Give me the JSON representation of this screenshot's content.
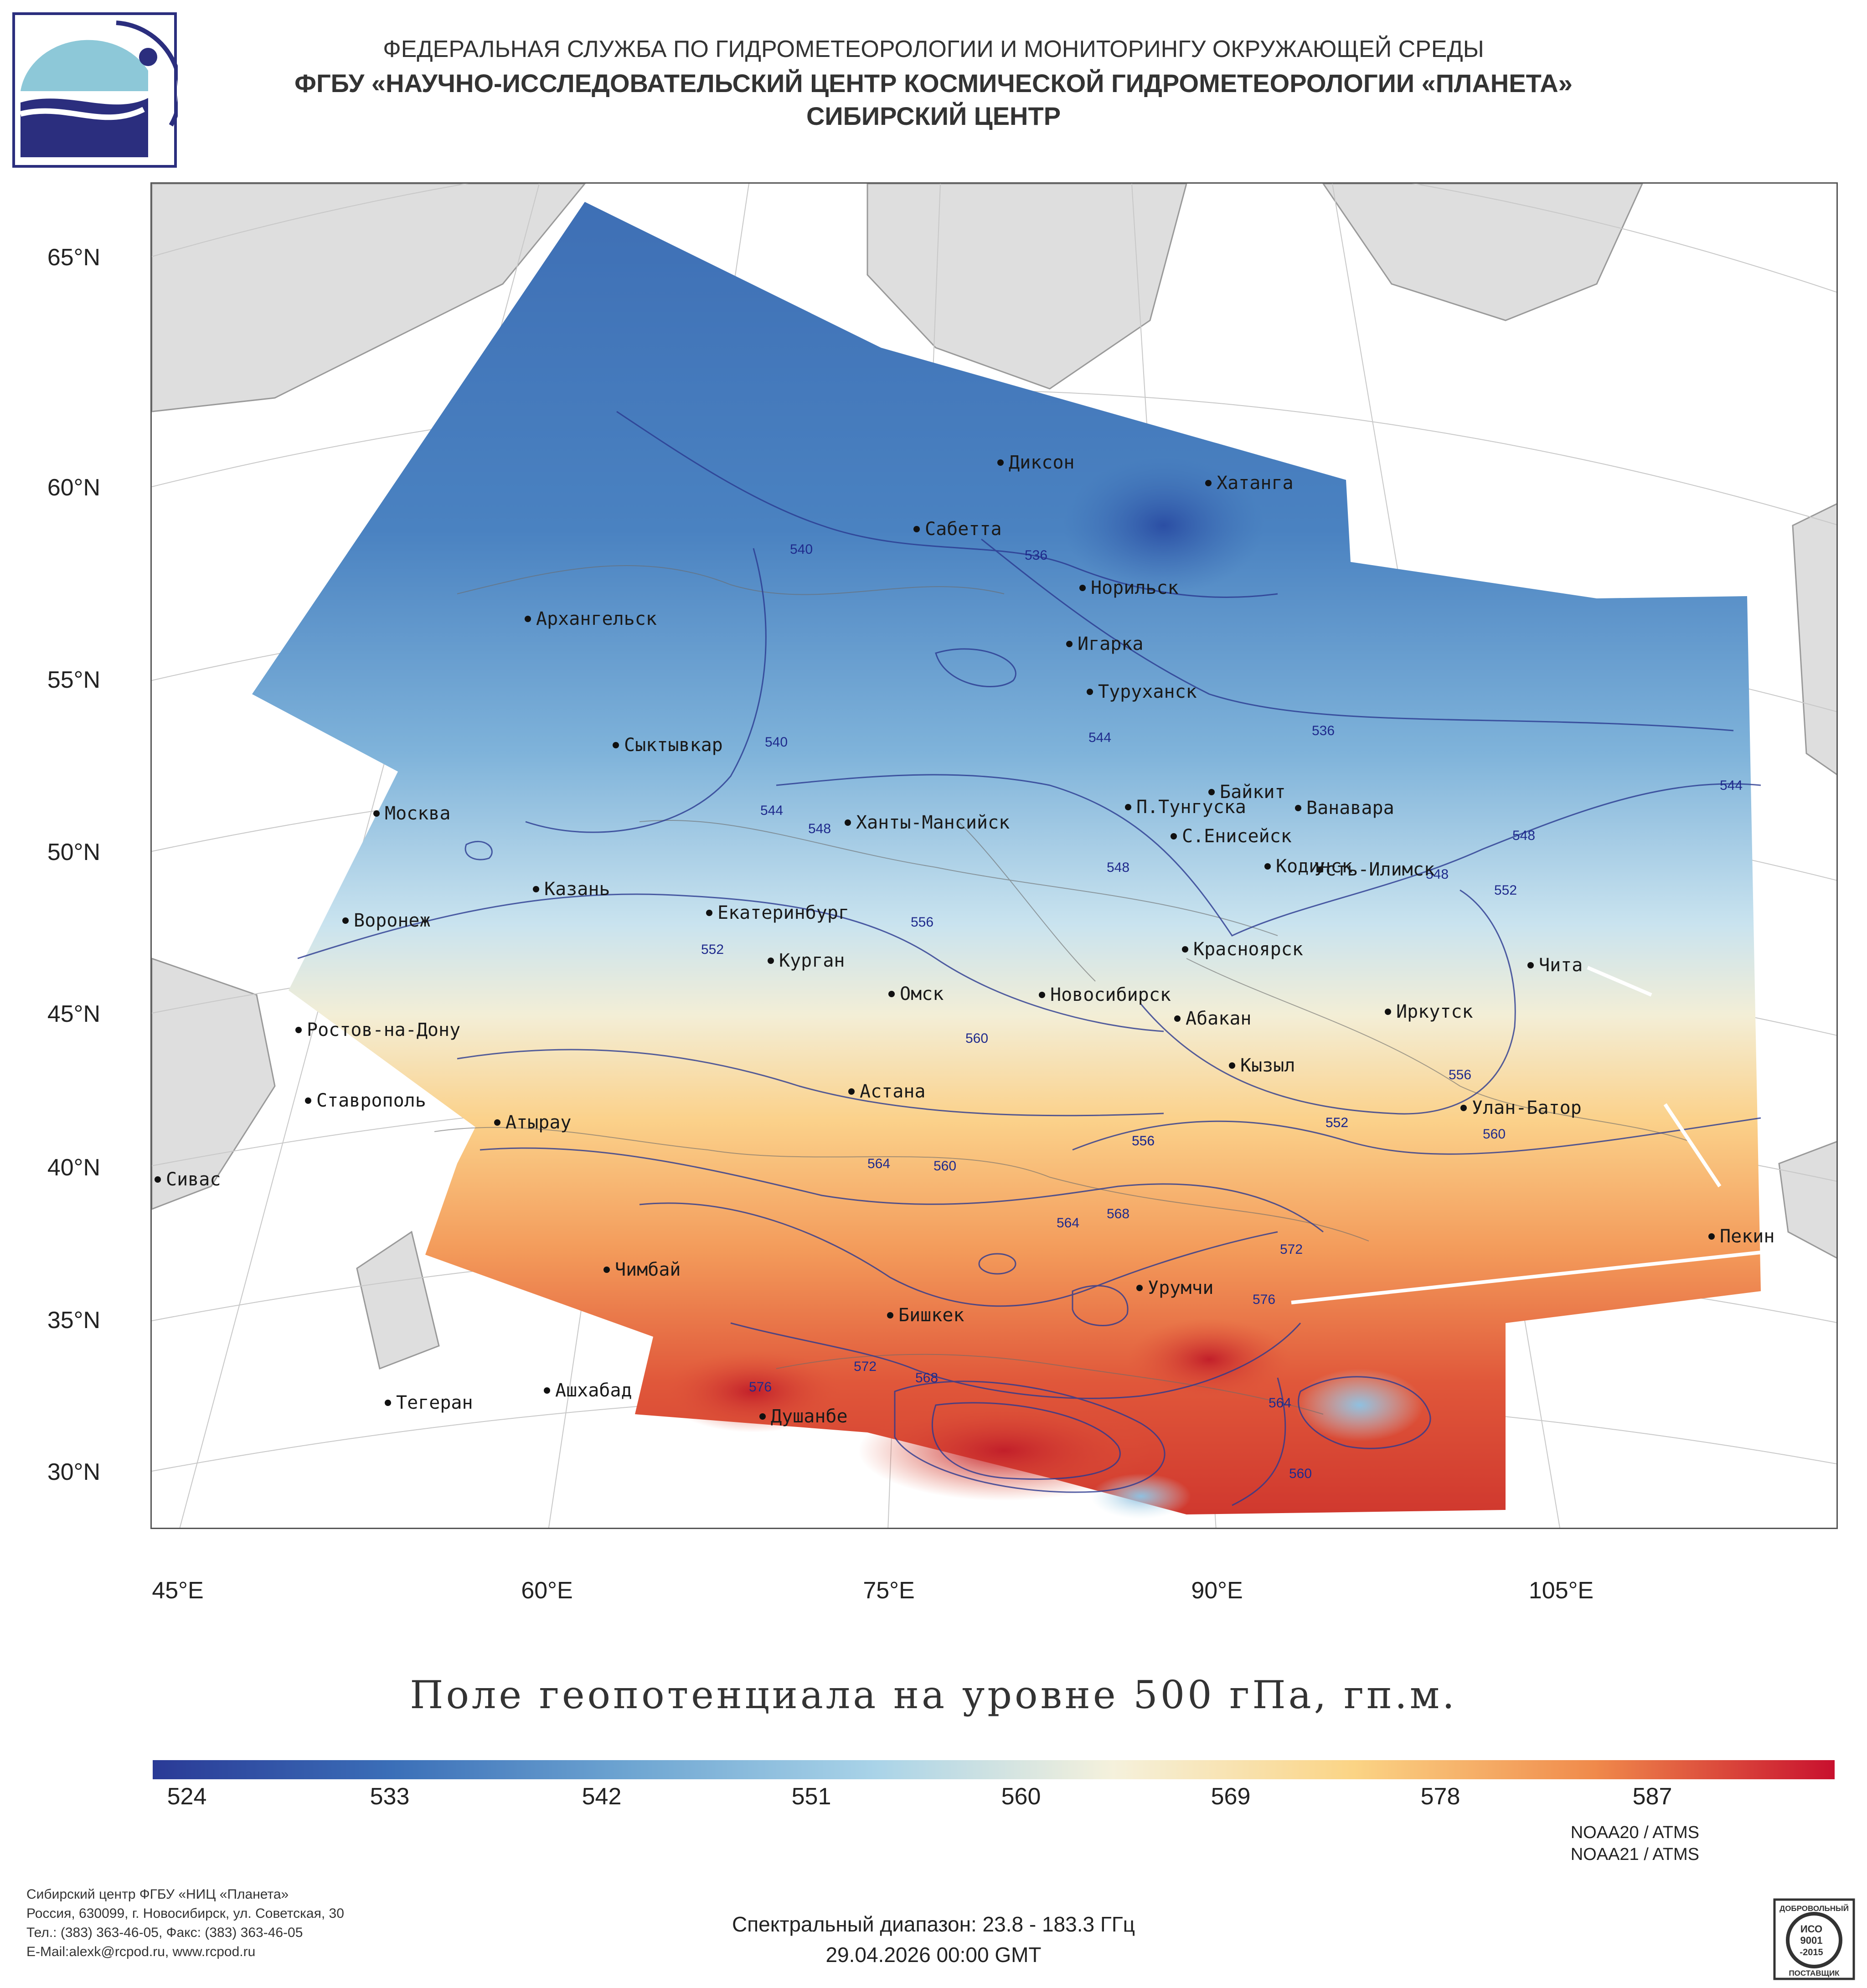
{
  "header": {
    "agency": "ФЕДЕРАЛЬНАЯ СЛУЖБА ПО ГИДРОМЕТЕОРОЛОГИИ И МОНИТОРИНГУ ОКРУЖАЮЩЕЙ СРЕДЫ",
    "institute": "ФГБУ «НАУЧНО-ИССЛЕДОВАТЕЛЬСКИЙ ЦЕНТР КОСМИЧЕСКОЙ ГИДРОМЕТЕОРОЛОГИИ «ПЛАНЕТА»",
    "center": "СИБИРСКИЙ ЦЕНТР"
  },
  "map": {
    "lat_labels": [
      "65°N",
      "60°N",
      "55°N",
      "50°N",
      "45°N",
      "40°N",
      "35°N",
      "30°N"
    ],
    "lon_labels": [
      "45°E",
      "60°E",
      "75°E",
      "90°E",
      "105°E"
    ],
    "cities": [
      "Диксон",
      "Хатанга",
      "Сабетта",
      "Норильск",
      "Архангельск",
      "Игарка",
      "Туруханск",
      "Сыктывкар",
      "Байкит",
      "Москва",
      "П.Тунгуска",
      "Ванавара",
      "Ханты-Мансийск",
      "С.Енисейск",
      "Казань",
      "Кодинск",
      "Усть-Илимск",
      "Воронеж",
      "Екатеринбург",
      "Красноярск",
      "Курган",
      "Чита",
      "Омск",
      "Новосибирск",
      "Иркутск",
      "Ростов-на-Дону",
      "Абакан",
      "Кызыл",
      "Ставрополь",
      "Астана",
      "Улан-Батор",
      "Атырау",
      "Сивас",
      "Пекин",
      "Чимбай",
      "Урумчи",
      "Бишкек",
      "Ашхабад",
      "Тегеран",
      "Душанбе"
    ],
    "contour_labels": [
      "540",
      "536",
      "536",
      "540",
      "544",
      "548",
      "544",
      "548",
      "544",
      "548",
      "548",
      "552",
      "552",
      "556",
      "552",
      "556",
      "560",
      "556",
      "552",
      "560",
      "556",
      "564",
      "560",
      "564",
      "568",
      "572",
      "576",
      "572",
      "576",
      "568",
      "564",
      "560"
    ]
  },
  "title": "Поле геопотенциала на уровне 500 гПа, гп.м.",
  "colorbar": {
    "ticks": [
      "524",
      "533",
      "542",
      "551",
      "560",
      "569",
      "578",
      "587"
    ],
    "colors": [
      "#2a3a96",
      "#3b6fb8",
      "#6fa6d2",
      "#a9d3e8",
      "#f5f1dc",
      "#fbd485",
      "#f08a4b",
      "#c8102e"
    ]
  },
  "footer": {
    "org_lines": [
      "Сибирский центр ФГБУ «НИЦ «Планета»",
      "Россия, 630099, г. Новосибирск, ул. Советская, 30",
      "Тел.: (383) 363-46-05, Факс: (383) 363-46-05",
      "E-Mail:alexk@rcpod.ru, www.rcpod.ru"
    ],
    "satellites": [
      "NOAA20 / ATMS",
      "NOAA21 / ATMS"
    ],
    "spectral": "Спектральный диапазон: 23.8 - 183.3 ГГц",
    "datetime": "29.04.2026 00:00 GMT",
    "iso": [
      "ДОБРОВОЛЬНЫЙ",
      "ИСО",
      "9001",
      "-2015",
      "ПОСТАВЩИК"
    ]
  }
}
